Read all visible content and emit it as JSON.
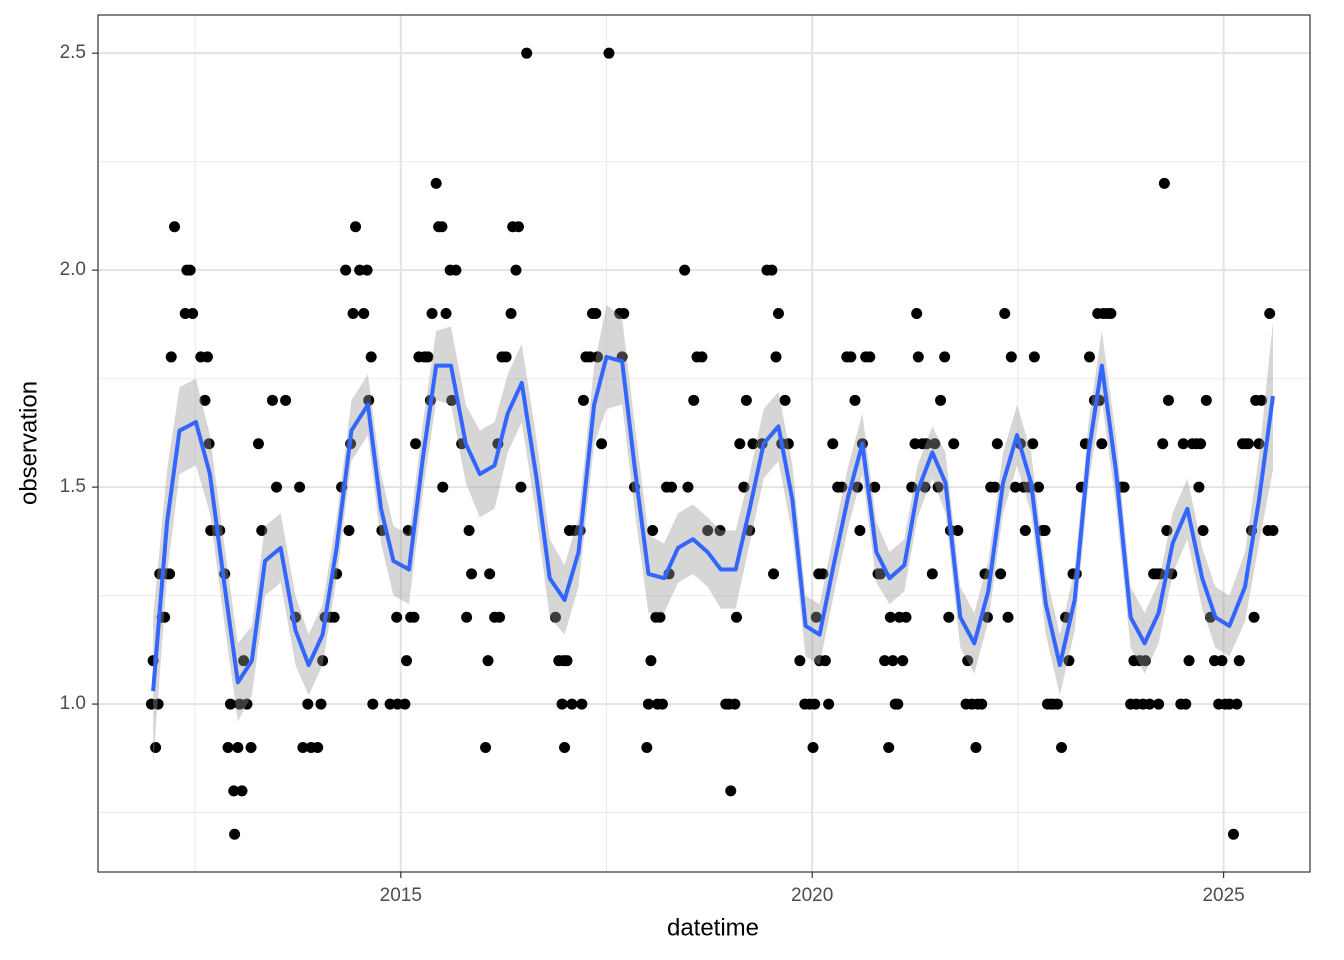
{
  "chart_data": {
    "type": "scatter",
    "x_label": "datetime",
    "y_label": "observation",
    "xlim": [
      2011.32,
      2026.05
    ],
    "ylim": [
      0.613,
      2.588
    ],
    "xticks": [
      2015,
      2020,
      2025
    ],
    "yticks": [
      {
        "value": 1,
        "label": "1.0"
      },
      1.5,
      {
        "value": 2,
        "label": "2.0"
      },
      2.5
    ],
    "x_minor_grid": [
      2012.5,
      2017.5,
      2022.5
    ],
    "y_minor_grid": [
      0.75,
      1.25,
      1.75,
      2.25
    ],
    "grid": true,
    "points": {
      "color": "#000000",
      "x": [
        2011.97,
        2011.99,
        2012.02,
        2012.05,
        2012.07,
        2012.1,
        2012.13,
        2012.16,
        2012.19,
        2012.21,
        2012.25,
        2012.38,
        2012.4,
        2012.44,
        2012.47,
        2012.57,
        2012.62,
        2012.65,
        2012.67,
        2012.69,
        2012.74,
        2012.8,
        2012.86,
        2012.9,
        2012.93,
        2012.97,
        2012.98,
        2013.02,
        2013.04,
        2013.07,
        2013.09,
        2013.13,
        2013.18,
        2013.27,
        2013.31,
        2013.44,
        2013.49,
        2013.6,
        2013.72,
        2013.77,
        2013.81,
        2013.87,
        2013.91,
        2013.99,
        2014.03,
        2014.05,
        2014.08,
        2014.15,
        2014.19,
        2014.22,
        2014.28,
        2014.33,
        2014.37,
        2014.39,
        2014.42,
        2014.45,
        2014.5,
        2014.55,
        2014.59,
        2014.61,
        2014.64,
        2014.66,
        2014.77,
        2014.87,
        2014.95,
        2014.96,
        2015.05,
        2015.07,
        2015.09,
        2015.12,
        2015.16,
        2015.18,
        2015.22,
        2015.29,
        2015.33,
        2015.36,
        2015.38,
        2015.43,
        2015.46,
        2015.5,
        2015.51,
        2015.55,
        2015.6,
        2015.62,
        2015.67,
        2015.74,
        2015.8,
        2015.83,
        2015.86,
        2016.03,
        2016.06,
        2016.08,
        2016.14,
        2016.18,
        2016.2,
        2016.23,
        2016.28,
        2016.34,
        2016.36,
        2016.4,
        2016.43,
        2016.46,
        2016.53,
        2016.88,
        2016.92,
        2016.96,
        2016.98,
        2016.99,
        2017.02,
        2017.05,
        2017.08,
        2017.11,
        2017.18,
        2017.2,
        2017.22,
        2017.25,
        2017.3,
        2017.33,
        2017.37,
        2017.39,
        2017.44,
        2017.53,
        2017.66,
        2017.69,
        2017.71,
        2017.84,
        2017.99,
        2018.01,
        2018.04,
        2018.06,
        2018.1,
        2018.12,
        2018.15,
        2018.18,
        2018.23,
        2018.26,
        2018.29,
        2018.45,
        2018.49,
        2018.56,
        2018.6,
        2018.66,
        2018.73,
        2018.88,
        2018.95,
        2018.99,
        2019.01,
        2019.06,
        2019.08,
        2019.12,
        2019.17,
        2019.2,
        2019.24,
        2019.28,
        2019.39,
        2019.45,
        2019.51,
        2019.53,
        2019.56,
        2019.59,
        2019.63,
        2019.67,
        2019.71,
        2019.85,
        2019.91,
        2019.97,
        2020.01,
        2020.03,
        2020.05,
        2020.08,
        2020.09,
        2020.13,
        2020.16,
        2020.2,
        2020.25,
        2020.31,
        2020.36,
        2020.42,
        2020.47,
        2020.52,
        2020.55,
        2020.58,
        2020.61,
        2020.65,
        2020.7,
        2020.76,
        2020.8,
        2020.83,
        2020.88,
        2020.93,
        2020.95,
        2020.98,
        2021.01,
        2021.04,
        2021.06,
        2021.1,
        2021.14,
        2021.21,
        2021.25,
        2021.27,
        2021.29,
        2021.34,
        2021.37,
        2021.39,
        2021.46,
        2021.49,
        2021.53,
        2021.56,
        2021.61,
        2021.66,
        2021.68,
        2021.72,
        2021.77,
        2021.87,
        2021.89,
        2021.94,
        2021.99,
        2022.01,
        2022.06,
        2022.1,
        2022.13,
        2022.17,
        2022.22,
        2022.25,
        2022.29,
        2022.34,
        2022.38,
        2022.42,
        2022.47,
        2022.53,
        2022.57,
        2022.59,
        2022.63,
        2022.68,
        2022.7,
        2022.75,
        2022.8,
        2022.83,
        2022.86,
        2022.9,
        2022.93,
        2022.98,
        2023.03,
        2023.08,
        2023.12,
        2023.17,
        2023.21,
        2023.27,
        2023.32,
        2023.37,
        2023.43,
        2023.47,
        2023.49,
        2023.52,
        2023.54,
        2023.59,
        2023.63,
        2023.76,
        2023.79,
        2023.87,
        2023.91,
        2023.94,
        2023.98,
        2024.02,
        2024.05,
        2024.1,
        2024.15,
        2024.19,
        2024.21,
        2024.23,
        2024.26,
        2024.28,
        2024.31,
        2024.33,
        2024.37,
        2024.48,
        2024.51,
        2024.54,
        2024.58,
        2024.62,
        2024.67,
        2024.7,
        2024.72,
        2024.75,
        2024.79,
        2024.84,
        2024.89,
        2024.94,
        2024.98,
        2025.02,
        2025.07,
        2025.12,
        2025.16,
        2025.19,
        2025.23,
        2025.27,
        2025.3,
        2025.34,
        2025.37,
        2025.39,
        2025.43,
        2025.46,
        2025.54,
        2025.56,
        2025.6
      ],
      "values": [
        1.0,
        1.1,
        0.9,
        1.0,
        1.3,
        1.2,
        1.2,
        1.3,
        1.3,
        1.8,
        2.1,
        1.9,
        2.0,
        2.0,
        1.9,
        1.8,
        1.7,
        1.8,
        1.6,
        1.4,
        1.4,
        1.4,
        1.3,
        0.9,
        1.0,
        0.8,
        0.7,
        0.9,
        1.0,
        0.8,
        1.1,
        1.0,
        0.9,
        1.6,
        1.4,
        1.7,
        1.5,
        1.7,
        1.2,
        1.5,
        0.9,
        1.0,
        0.9,
        0.9,
        1.0,
        1.1,
        1.2,
        1.2,
        1.2,
        1.3,
        1.5,
        2.0,
        1.4,
        1.6,
        1.9,
        2.1,
        2.0,
        1.9,
        2.0,
        1.7,
        1.8,
        1.0,
        1.4,
        1.0,
        1.2,
        1.0,
        1.0,
        1.1,
        1.4,
        1.2,
        1.2,
        1.6,
        1.8,
        1.8,
        1.8,
        1.7,
        1.9,
        2.2,
        2.1,
        2.1,
        1.5,
        1.9,
        2.0,
        1.7,
        2.0,
        1.6,
        1.2,
        1.4,
        1.3,
        0.9,
        1.1,
        1.3,
        1.2,
        1.6,
        1.2,
        1.8,
        1.8,
        1.9,
        2.1,
        2.0,
        2.1,
        1.5,
        2.5,
        1.2,
        1.1,
        1.0,
        1.1,
        0.9,
        1.1,
        1.4,
        1.0,
        1.4,
        1.4,
        1.0,
        1.7,
        1.8,
        1.8,
        1.9,
        1.9,
        1.8,
        1.6,
        2.5,
        1.9,
        1.8,
        1.9,
        1.5,
        0.9,
        1.0,
        1.1,
        1.4,
        1.2,
        1.0,
        1.2,
        1.0,
        1.5,
        1.3,
        1.5,
        2.0,
        1.5,
        1.7,
        1.8,
        1.8,
        1.4,
        1.4,
        1.0,
        1.0,
        0.8,
        1.0,
        1.2,
        1.6,
        1.5,
        1.7,
        1.4,
        1.6,
        1.6,
        2.0,
        2.0,
        1.3,
        1.8,
        1.9,
        1.6,
        1.7,
        1.6,
        1.1,
        1.0,
        1.0,
        0.9,
        1.0,
        1.2,
        1.3,
        1.1,
        1.3,
        1.1,
        1.0,
        1.6,
        1.5,
        1.5,
        1.8,
        1.8,
        1.7,
        1.5,
        1.4,
        1.6,
        1.8,
        1.8,
        1.5,
        1.3,
        1.3,
        1.1,
        0.9,
        1.2,
        1.1,
        1.0,
        1.0,
        1.2,
        1.1,
        1.2,
        1.5,
        1.6,
        1.9,
        1.8,
        1.6,
        1.5,
        1.6,
        1.3,
        1.6,
        1.5,
        1.7,
        1.8,
        1.2,
        1.4,
        1.6,
        1.4,
        1.0,
        1.1,
        1.0,
        0.9,
        1.0,
        1.0,
        1.3,
        1.2,
        1.5,
        1.5,
        1.6,
        1.3,
        1.9,
        1.2,
        1.8,
        1.5,
        1.6,
        1.5,
        1.4,
        1.5,
        1.6,
        1.8,
        1.5,
        1.4,
        1.4,
        1.0,
        1.0,
        1.0,
        1.0,
        0.9,
        1.2,
        1.1,
        1.3,
        1.3,
        1.5,
        1.6,
        1.8,
        1.7,
        1.9,
        1.7,
        1.6,
        1.9,
        1.9,
        1.9,
        1.5,
        1.5,
        1.0,
        1.1,
        1.0,
        1.1,
        1.0,
        1.1,
        1.0,
        1.3,
        1.3,
        1.0,
        1.3,
        1.6,
        2.2,
        1.4,
        1.7,
        1.3,
        1.0,
        1.6,
        1.0,
        1.1,
        1.6,
        1.6,
        1.5,
        1.6,
        1.4,
        1.7,
        1.2,
        1.1,
        1.0,
        1.1,
        1.0,
        1.0,
        0.7,
        1.0,
        1.1,
        1.6,
        1.6,
        1.6,
        1.4,
        1.2,
        1.7,
        1.6,
        1.7,
        1.4,
        1.9,
        1.4
      ]
    },
    "smooth": {
      "color": "#3366ff",
      "band_color": "#999999",
      "x": [
        2011.99,
        2012.16,
        2012.31,
        2012.51,
        2012.68,
        2012.86,
        2013.02,
        2013.19,
        2013.35,
        2013.54,
        2013.72,
        2013.88,
        2014.05,
        2014.22,
        2014.4,
        2014.6,
        2014.76,
        2014.91,
        2015.1,
        2015.27,
        2015.43,
        2015.61,
        2015.79,
        2015.96,
        2016.14,
        2016.3,
        2016.47,
        2016.65,
        2016.81,
        2016.99,
        2017.16,
        2017.35,
        2017.5,
        2017.69,
        2017.84,
        2018.01,
        2018.2,
        2018.37,
        2018.55,
        2018.73,
        2018.89,
        2019.07,
        2019.24,
        2019.41,
        2019.59,
        2019.76,
        2019.92,
        2020.09,
        2020.26,
        2020.44,
        2020.61,
        2020.78,
        2020.94,
        2021.12,
        2021.28,
        2021.46,
        2021.62,
        2021.8,
        2021.97,
        2022.14,
        2022.32,
        2022.49,
        2022.66,
        2022.84,
        2023.01,
        2023.19,
        2023.36,
        2023.52,
        2023.69,
        2023.87,
        2024.04,
        2024.21,
        2024.38,
        2024.56,
        2024.74,
        2024.9,
        2025.07,
        2025.26,
        2025.43,
        2025.6
      ],
      "values": [
        1.03,
        1.42,
        1.63,
        1.65,
        1.53,
        1.27,
        1.05,
        1.1,
        1.33,
        1.36,
        1.17,
        1.09,
        1.16,
        1.36,
        1.63,
        1.69,
        1.45,
        1.33,
        1.31,
        1.57,
        1.78,
        1.78,
        1.6,
        1.53,
        1.55,
        1.67,
        1.74,
        1.52,
        1.29,
        1.24,
        1.35,
        1.69,
        1.8,
        1.79,
        1.55,
        1.3,
        1.29,
        1.36,
        1.38,
        1.35,
        1.31,
        1.31,
        1.45,
        1.6,
        1.64,
        1.47,
        1.18,
        1.16,
        1.32,
        1.48,
        1.6,
        1.35,
        1.29,
        1.32,
        1.49,
        1.58,
        1.51,
        1.2,
        1.14,
        1.26,
        1.51,
        1.62,
        1.51,
        1.23,
        1.09,
        1.24,
        1.58,
        1.78,
        1.54,
        1.2,
        1.14,
        1.21,
        1.37,
        1.45,
        1.29,
        1.2,
        1.18,
        1.27,
        1.47,
        1.71
      ],
      "lower": [
        0.86,
        1.3,
        1.53,
        1.55,
        1.44,
        1.18,
        0.96,
        1.02,
        1.25,
        1.28,
        1.09,
        1.02,
        1.09,
        1.29,
        1.56,
        1.62,
        1.37,
        1.25,
        1.23,
        1.49,
        1.7,
        1.69,
        1.51,
        1.43,
        1.45,
        1.58,
        1.65,
        1.43,
        1.2,
        1.16,
        1.27,
        1.6,
        1.68,
        1.69,
        1.45,
        1.21,
        1.21,
        1.28,
        1.3,
        1.27,
        1.22,
        1.22,
        1.37,
        1.52,
        1.56,
        1.39,
        1.11,
        1.09,
        1.25,
        1.41,
        1.53,
        1.28,
        1.23,
        1.26,
        1.43,
        1.52,
        1.44,
        1.13,
        1.07,
        1.19,
        1.44,
        1.55,
        1.44,
        1.16,
        1.02,
        1.17,
        1.51,
        1.7,
        1.46,
        1.13,
        1.07,
        1.14,
        1.3,
        1.38,
        1.22,
        1.13,
        1.11,
        1.19,
        1.37,
        1.54
      ],
      "upper": [
        1.2,
        1.54,
        1.73,
        1.75,
        1.62,
        1.36,
        1.14,
        1.18,
        1.41,
        1.44,
        1.25,
        1.16,
        1.23,
        1.43,
        1.7,
        1.76,
        1.53,
        1.41,
        1.39,
        1.65,
        1.86,
        1.87,
        1.69,
        1.63,
        1.65,
        1.76,
        1.83,
        1.61,
        1.38,
        1.32,
        1.43,
        1.78,
        1.92,
        1.89,
        1.65,
        1.39,
        1.37,
        1.44,
        1.46,
        1.43,
        1.4,
        1.4,
        1.53,
        1.68,
        1.72,
        1.55,
        1.25,
        1.23,
        1.39,
        1.55,
        1.67,
        1.42,
        1.35,
        1.38,
        1.55,
        1.64,
        1.58,
        1.27,
        1.21,
        1.33,
        1.58,
        1.69,
        1.58,
        1.3,
        1.16,
        1.31,
        1.65,
        1.86,
        1.62,
        1.27,
        1.21,
        1.28,
        1.44,
        1.52,
        1.36,
        1.27,
        1.25,
        1.35,
        1.57,
        1.88
      ]
    }
  }
}
